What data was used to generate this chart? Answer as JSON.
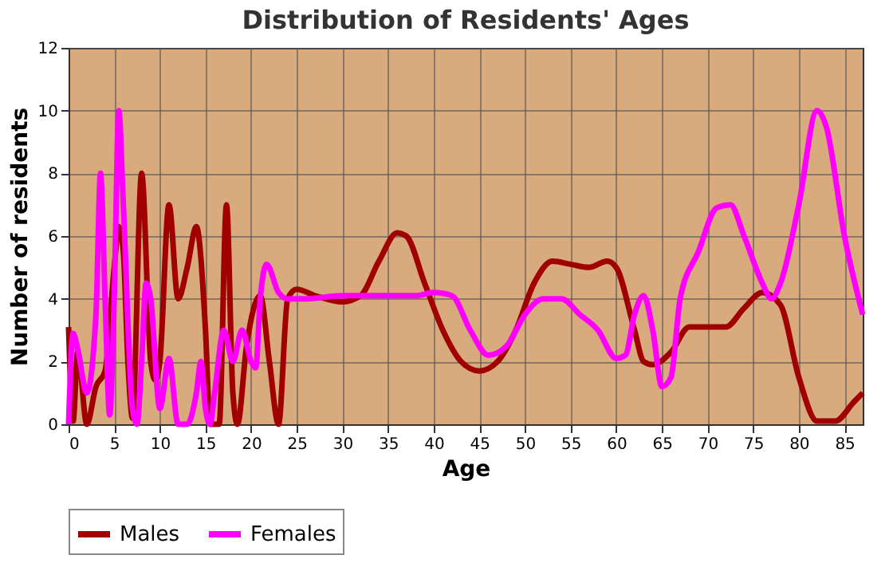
{
  "chart_data": {
    "type": "line",
    "title": "Distribution of Residents' Ages",
    "xlabel": "Age",
    "ylabel": "Number of residents",
    "xlim": [
      0,
      87
    ],
    "xticks": [
      0,
      5,
      10,
      15,
      20,
      25,
      30,
      35,
      40,
      45,
      50,
      55,
      60,
      65,
      70,
      75,
      80,
      85
    ],
    "ylim": [
      0,
      12
    ],
    "yticks": [
      0,
      2,
      4,
      6,
      8,
      10,
      12
    ],
    "grid": true,
    "legend": "bottom",
    "marker": "none",
    "line_style": "solid",
    "series": [
      {
        "name": "Males",
        "color": "#a00000",
        "x": [
          0,
          0.5,
          1,
          2,
          3,
          4,
          5,
          5.5,
          6,
          6.5,
          7,
          8,
          9,
          9.5,
          10,
          11,
          12,
          13,
          14,
          15,
          15.5,
          16.5,
          17.3,
          18,
          18.5,
          19.5,
          21,
          22,
          23,
          24,
          25,
          27,
          30,
          32,
          34,
          36,
          37,
          39,
          41,
          43,
          45,
          47,
          49,
          51,
          53,
          55,
          57,
          59,
          60,
          62,
          63,
          64,
          66,
          68,
          70,
          72,
          74,
          76,
          78,
          80,
          82,
          84,
          86,
          87
        ],
        "values": [
          3.1,
          0.1,
          2.3,
          0,
          1.2,
          1.7,
          5,
          6.3,
          5.5,
          2,
          0.2,
          8,
          2,
          1.4,
          2,
          7,
          4,
          5,
          6.3,
          3,
          0,
          0,
          7,
          1,
          0,
          2.5,
          4.1,
          2,
          0,
          4,
          4.3,
          4.1,
          3.9,
          4.1,
          5.2,
          6.1,
          6,
          4.5,
          3,
          2,
          1.7,
          2,
          3,
          4.5,
          5.2,
          5.1,
          5,
          5.2,
          5,
          3,
          2,
          1.9,
          2.3,
          3.1,
          3.1,
          3.1,
          3.7,
          4.2,
          3.8,
          1.5,
          0.1,
          0.1,
          0.7,
          1
        ]
      },
      {
        "name": "Females",
        "color": "#ff00ff",
        "x": [
          0,
          0.5,
          1,
          2,
          3,
          3.5,
          4,
          4.5,
          5,
          5.5,
          6,
          7,
          7.5,
          8,
          8.5,
          9,
          10,
          11,
          12,
          13,
          14,
          14.5,
          15,
          15.5,
          16,
          17,
          18,
          19,
          20,
          20.5,
          21,
          21.7,
          23,
          24,
          26,
          30,
          35,
          38,
          40,
          42,
          44,
          46,
          48,
          50,
          52,
          54,
          56,
          58,
          60,
          61,
          62,
          63,
          64,
          65,
          66,
          67,
          69,
          71,
          72.5,
          74,
          76,
          77,
          78,
          80,
          82,
          83,
          85,
          87
        ],
        "values": [
          0,
          2.9,
          2.4,
          1,
          3.5,
          8,
          4,
          0.3,
          4,
          10,
          7,
          0.5,
          0,
          2,
          4.5,
          4,
          0.5,
          2.1,
          0,
          0,
          1,
          2,
          0.5,
          0,
          1,
          3,
          2,
          3,
          2,
          1.8,
          4,
          5.1,
          4.2,
          4,
          4,
          4.1,
          4.1,
          4.1,
          4.2,
          4.1,
          3,
          2.2,
          2.5,
          3.5,
          4,
          4,
          3.5,
          3,
          2.1,
          2.2,
          3.5,
          4.1,
          3,
          1.2,
          1.5,
          4,
          5.5,
          6.9,
          7,
          6,
          4.5,
          4,
          4.5,
          7,
          10,
          9.5,
          6,
          3.5
        ]
      }
    ]
  }
}
